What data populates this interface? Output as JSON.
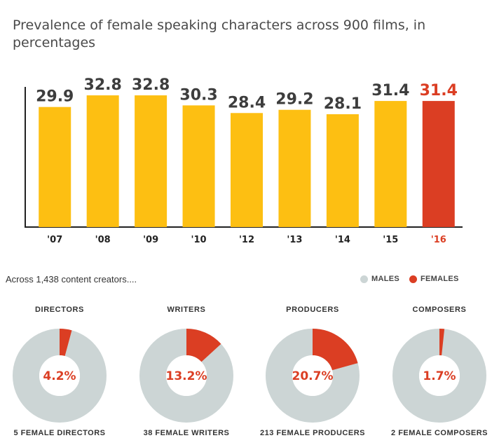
{
  "title": "Prevalence of female speaking characters across 900 films, in percentages",
  "colors": {
    "bar": "#FDBF12",
    "highlight": "#DB3E23",
    "male": "#CCD5D5",
    "axis": "#222222"
  },
  "chart_data": [
    {
      "type": "bar",
      "title": "Prevalence of female speaking characters across 900 films, in percentages",
      "categories": [
        "'07",
        "'08",
        "'09",
        "'10",
        "'12",
        "'13",
        "'14",
        "'15",
        "'16"
      ],
      "values": [
        29.9,
        32.8,
        32.8,
        30.3,
        28.4,
        29.2,
        28.1,
        31.4,
        31.4
      ],
      "highlight_index": 8,
      "ylim": [
        0,
        37
      ],
      "grid": false,
      "xlabel": "",
      "ylabel": ""
    },
    {
      "type": "pie",
      "title": "DIRECTORS",
      "categories": [
        "MALES",
        "FEMALES"
      ],
      "values": [
        95.8,
        4.2
      ],
      "center_label": "4.2%",
      "caption": "5 FEMALE DIRECTORS"
    },
    {
      "type": "pie",
      "title": "WRITERS",
      "categories": [
        "MALES",
        "FEMALES"
      ],
      "values": [
        86.8,
        13.2
      ],
      "center_label": "13.2%",
      "caption": "38 FEMALE WRITERS"
    },
    {
      "type": "pie",
      "title": "PRODUCERS",
      "categories": [
        "MALES",
        "FEMALES"
      ],
      "values": [
        79.3,
        20.7
      ],
      "center_label": "20.7%",
      "caption": "213 FEMALE PRODUCERS"
    },
    {
      "type": "pie",
      "title": "COMPOSERS",
      "categories": [
        "MALES",
        "FEMALES"
      ],
      "values": [
        98.3,
        1.7
      ],
      "center_label": "1.7%",
      "caption": "2 FEMALE COMPOSERS"
    }
  ],
  "subheading": "Across 1,438 content creators....",
  "legend": {
    "males": "MALES",
    "females": "FEMALES"
  }
}
